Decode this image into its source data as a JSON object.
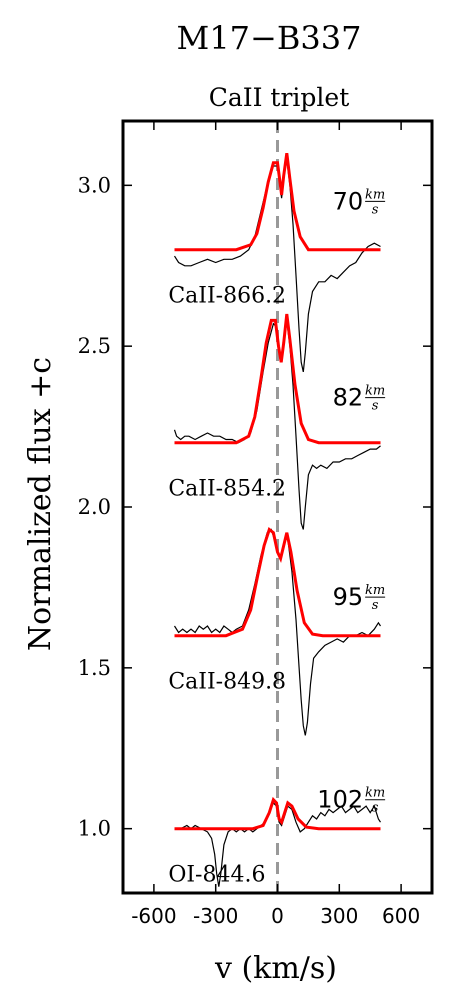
{
  "colors": {
    "observed": "#000000",
    "fit": "#ff0000",
    "zero_line": "#999999"
  },
  "chart_data": {
    "type": "line",
    "title": "M17−B337",
    "subtitle": "CaII triplet",
    "xlabel": "v (km/s)",
    "ylabel": "Normalized flux +c",
    "xlim": [
      -750,
      750
    ],
    "ylim": [
      0.8,
      3.2
    ],
    "xticks": [
      -600,
      -300,
      0,
      300,
      600
    ],
    "xtick_labels": [
      "-600",
      "-300",
      "0",
      "300",
      "600"
    ],
    "yticks": [
      1.0,
      1.5,
      2.0,
      2.5,
      3.0
    ],
    "ytick_labels": [
      "1.0",
      "1.5",
      "2.0",
      "2.5",
      "3.0"
    ],
    "vertical_line_x": 0,
    "velocity_unit": "km/s",
    "panels": [
      {
        "label": "CaII-866.2",
        "width_value": "70",
        "offset": 2.8,
        "fit": [
          [
            -500,
            2.8
          ],
          [
            -200,
            2.8
          ],
          [
            -130,
            2.815
          ],
          [
            -100,
            2.85
          ],
          [
            -70,
            2.93
          ],
          [
            -45,
            3.01
          ],
          [
            -20,
            3.07
          ],
          [
            0,
            3.07
          ],
          [
            10,
            3.02
          ],
          [
            20,
            2.97
          ],
          [
            30,
            3.03
          ],
          [
            45,
            3.1
          ],
          [
            60,
            3.02
          ],
          [
            80,
            2.92
          ],
          [
            110,
            2.84
          ],
          [
            150,
            2.8
          ],
          [
            500,
            2.8
          ]
        ],
        "observed": [
          [
            -500,
            2.78
          ],
          [
            -480,
            2.76
          ],
          [
            -450,
            2.75
          ],
          [
            -420,
            2.75
          ],
          [
            -380,
            2.76
          ],
          [
            -340,
            2.77
          ],
          [
            -300,
            2.76
          ],
          [
            -260,
            2.77
          ],
          [
            -220,
            2.77
          ],
          [
            -180,
            2.78
          ],
          [
            -140,
            2.8
          ],
          [
            -110,
            2.84
          ],
          [
            -80,
            2.92
          ],
          [
            -50,
            3.0
          ],
          [
            -20,
            3.06
          ],
          [
            0,
            3.06
          ],
          [
            10,
            3.01
          ],
          [
            20,
            2.96
          ],
          [
            30,
            3.02
          ],
          [
            45,
            3.08
          ],
          [
            60,
            3.0
          ],
          [
            75,
            2.88
          ],
          [
            90,
            2.72
          ],
          [
            105,
            2.55
          ],
          [
            115,
            2.45
          ],
          [
            125,
            2.42
          ],
          [
            135,
            2.48
          ],
          [
            150,
            2.6
          ],
          [
            170,
            2.67
          ],
          [
            200,
            2.7
          ],
          [
            230,
            2.7
          ],
          [
            260,
            2.72
          ],
          [
            290,
            2.71
          ],
          [
            320,
            2.73
          ],
          [
            350,
            2.75
          ],
          [
            380,
            2.76
          ],
          [
            410,
            2.79
          ],
          [
            440,
            2.81
          ],
          [
            470,
            2.82
          ],
          [
            500,
            2.81
          ]
        ]
      },
      {
        "label": "CaII-854.2",
        "width_value": "82",
        "offset": 2.2,
        "fit": [
          [
            -500,
            2.2
          ],
          [
            -200,
            2.2
          ],
          [
            -140,
            2.22
          ],
          [
            -110,
            2.28
          ],
          [
            -80,
            2.4
          ],
          [
            -55,
            2.51
          ],
          [
            -30,
            2.58
          ],
          [
            -10,
            2.58
          ],
          [
            5,
            2.5
          ],
          [
            18,
            2.45
          ],
          [
            30,
            2.51
          ],
          [
            45,
            2.6
          ],
          [
            60,
            2.52
          ],
          [
            85,
            2.38
          ],
          [
            115,
            2.26
          ],
          [
            150,
            2.21
          ],
          [
            200,
            2.2
          ],
          [
            500,
            2.2
          ]
        ],
        "observed": [
          [
            -500,
            2.24
          ],
          [
            -490,
            2.22
          ],
          [
            -470,
            2.21
          ],
          [
            -450,
            2.22
          ],
          [
            -430,
            2.22
          ],
          [
            -400,
            2.21
          ],
          [
            -370,
            2.22
          ],
          [
            -340,
            2.23
          ],
          [
            -310,
            2.22
          ],
          [
            -280,
            2.22
          ],
          [
            -250,
            2.21
          ],
          [
            -220,
            2.21
          ],
          [
            -190,
            2.2
          ],
          [
            -160,
            2.21
          ],
          [
            -130,
            2.23
          ],
          [
            -100,
            2.3
          ],
          [
            -70,
            2.42
          ],
          [
            -45,
            2.51
          ],
          [
            -20,
            2.57
          ],
          [
            -5,
            2.56
          ],
          [
            8,
            2.48
          ],
          [
            18,
            2.45
          ],
          [
            30,
            2.51
          ],
          [
            45,
            2.58
          ],
          [
            60,
            2.5
          ],
          [
            75,
            2.38
          ],
          [
            90,
            2.22
          ],
          [
            105,
            2.05
          ],
          [
            115,
            1.95
          ],
          [
            125,
            1.93
          ],
          [
            135,
            2.0
          ],
          [
            150,
            2.1
          ],
          [
            170,
            2.13
          ],
          [
            190,
            2.12
          ],
          [
            210,
            2.13
          ],
          [
            240,
            2.12
          ],
          [
            270,
            2.14
          ],
          [
            300,
            2.14
          ],
          [
            330,
            2.15
          ],
          [
            360,
            2.15
          ],
          [
            390,
            2.16
          ],
          [
            420,
            2.17
          ],
          [
            450,
            2.18
          ],
          [
            480,
            2.18
          ],
          [
            500,
            2.19
          ]
        ]
      },
      {
        "label": "CaII-849.8",
        "width_value": "95",
        "offset": 1.6,
        "fit": [
          [
            -500,
            1.6
          ],
          [
            -250,
            1.6
          ],
          [
            -170,
            1.62
          ],
          [
            -130,
            1.68
          ],
          [
            -95,
            1.79
          ],
          [
            -65,
            1.88
          ],
          [
            -40,
            1.93
          ],
          [
            -20,
            1.92
          ],
          [
            0,
            1.86
          ],
          [
            15,
            1.84
          ],
          [
            30,
            1.88
          ],
          [
            45,
            1.92
          ],
          [
            65,
            1.86
          ],
          [
            95,
            1.74
          ],
          [
            130,
            1.64
          ],
          [
            170,
            1.605
          ],
          [
            220,
            1.6
          ],
          [
            500,
            1.6
          ]
        ],
        "observed": [
          [
            -500,
            1.63
          ],
          [
            -480,
            1.61
          ],
          [
            -460,
            1.62
          ],
          [
            -440,
            1.61
          ],
          [
            -420,
            1.62
          ],
          [
            -400,
            1.61
          ],
          [
            -380,
            1.63
          ],
          [
            -360,
            1.62
          ],
          [
            -340,
            1.63
          ],
          [
            -320,
            1.61
          ],
          [
            -300,
            1.62
          ],
          [
            -280,
            1.61
          ],
          [
            -260,
            1.63
          ],
          [
            -240,
            1.62
          ],
          [
            -220,
            1.61
          ],
          [
            -200,
            1.62
          ],
          [
            -170,
            1.63
          ],
          [
            -140,
            1.68
          ],
          [
            -110,
            1.76
          ],
          [
            -80,
            1.85
          ],
          [
            -50,
            1.92
          ],
          [
            -30,
            1.93
          ],
          [
            -10,
            1.89
          ],
          [
            5,
            1.85
          ],
          [
            20,
            1.85
          ],
          [
            35,
            1.9
          ],
          [
            50,
            1.9
          ],
          [
            70,
            1.8
          ],
          [
            90,
            1.65
          ],
          [
            105,
            1.5
          ],
          [
            115,
            1.4
          ],
          [
            125,
            1.32
          ],
          [
            135,
            1.29
          ],
          [
            145,
            1.33
          ],
          [
            160,
            1.45
          ],
          [
            175,
            1.53
          ],
          [
            200,
            1.55
          ],
          [
            230,
            1.57
          ],
          [
            260,
            1.58
          ],
          [
            290,
            1.59
          ],
          [
            320,
            1.58
          ],
          [
            350,
            1.6
          ],
          [
            380,
            1.6
          ],
          [
            410,
            1.61
          ],
          [
            440,
            1.6
          ],
          [
            470,
            1.62
          ],
          [
            490,
            1.64
          ],
          [
            500,
            1.63
          ]
        ]
      },
      {
        "label": "OI-844.6",
        "width_value": "102",
        "offset": 1.0,
        "fit": [
          [
            -500,
            1.0
          ],
          [
            -120,
            1.0
          ],
          [
            -70,
            1.01
          ],
          [
            -40,
            1.05
          ],
          [
            -20,
            1.09
          ],
          [
            -5,
            1.08
          ],
          [
            8,
            1.03
          ],
          [
            20,
            1.02
          ],
          [
            35,
            1.05
          ],
          [
            50,
            1.08
          ],
          [
            70,
            1.07
          ],
          [
            100,
            1.03
          ],
          [
            140,
            1.005
          ],
          [
            200,
            1.0
          ],
          [
            500,
            1.0
          ]
        ],
        "observed": [
          [
            -500,
            1.0
          ],
          [
            -470,
            1.0
          ],
          [
            -440,
            1.01
          ],
          [
            -420,
            1.0
          ],
          [
            -400,
            1.01
          ],
          [
            -370,
            1.0
          ],
          [
            -340,
            0.99
          ],
          [
            -320,
            0.97
          ],
          [
            -305,
            0.92
          ],
          [
            -295,
            0.86
          ],
          [
            -285,
            0.82
          ],
          [
            -275,
            0.86
          ],
          [
            -260,
            0.95
          ],
          [
            -240,
            0.99
          ],
          [
            -220,
            1.0
          ],
          [
            -200,
            0.99
          ],
          [
            -180,
            1.0
          ],
          [
            -160,
            0.99
          ],
          [
            -140,
            1.0
          ],
          [
            -120,
            0.99
          ],
          [
            -100,
            1.0
          ],
          [
            -80,
            1.01
          ],
          [
            -60,
            1.02
          ],
          [
            -40,
            1.05
          ],
          [
            -20,
            1.08
          ],
          [
            -5,
            1.07
          ],
          [
            8,
            1.02
          ],
          [
            20,
            1.01
          ],
          [
            35,
            1.04
          ],
          [
            50,
            1.07
          ],
          [
            70,
            1.06
          ],
          [
            90,
            1.02
          ],
          [
            110,
            0.99
          ],
          [
            130,
            1.0
          ],
          [
            150,
            1.02
          ],
          [
            170,
            1.04
          ],
          [
            190,
            1.03
          ],
          [
            210,
            1.05
          ],
          [
            230,
            1.04
          ],
          [
            250,
            1.06
          ],
          [
            270,
            1.05
          ],
          [
            290,
            1.06
          ],
          [
            310,
            1.07
          ],
          [
            330,
            1.05
          ],
          [
            350,
            1.06
          ],
          [
            370,
            1.07
          ],
          [
            390,
            1.05
          ],
          [
            410,
            1.06
          ],
          [
            430,
            1.07
          ],
          [
            450,
            1.05
          ],
          [
            470,
            1.07
          ],
          [
            490,
            1.03
          ],
          [
            500,
            1.02
          ]
        ]
      }
    ]
  }
}
